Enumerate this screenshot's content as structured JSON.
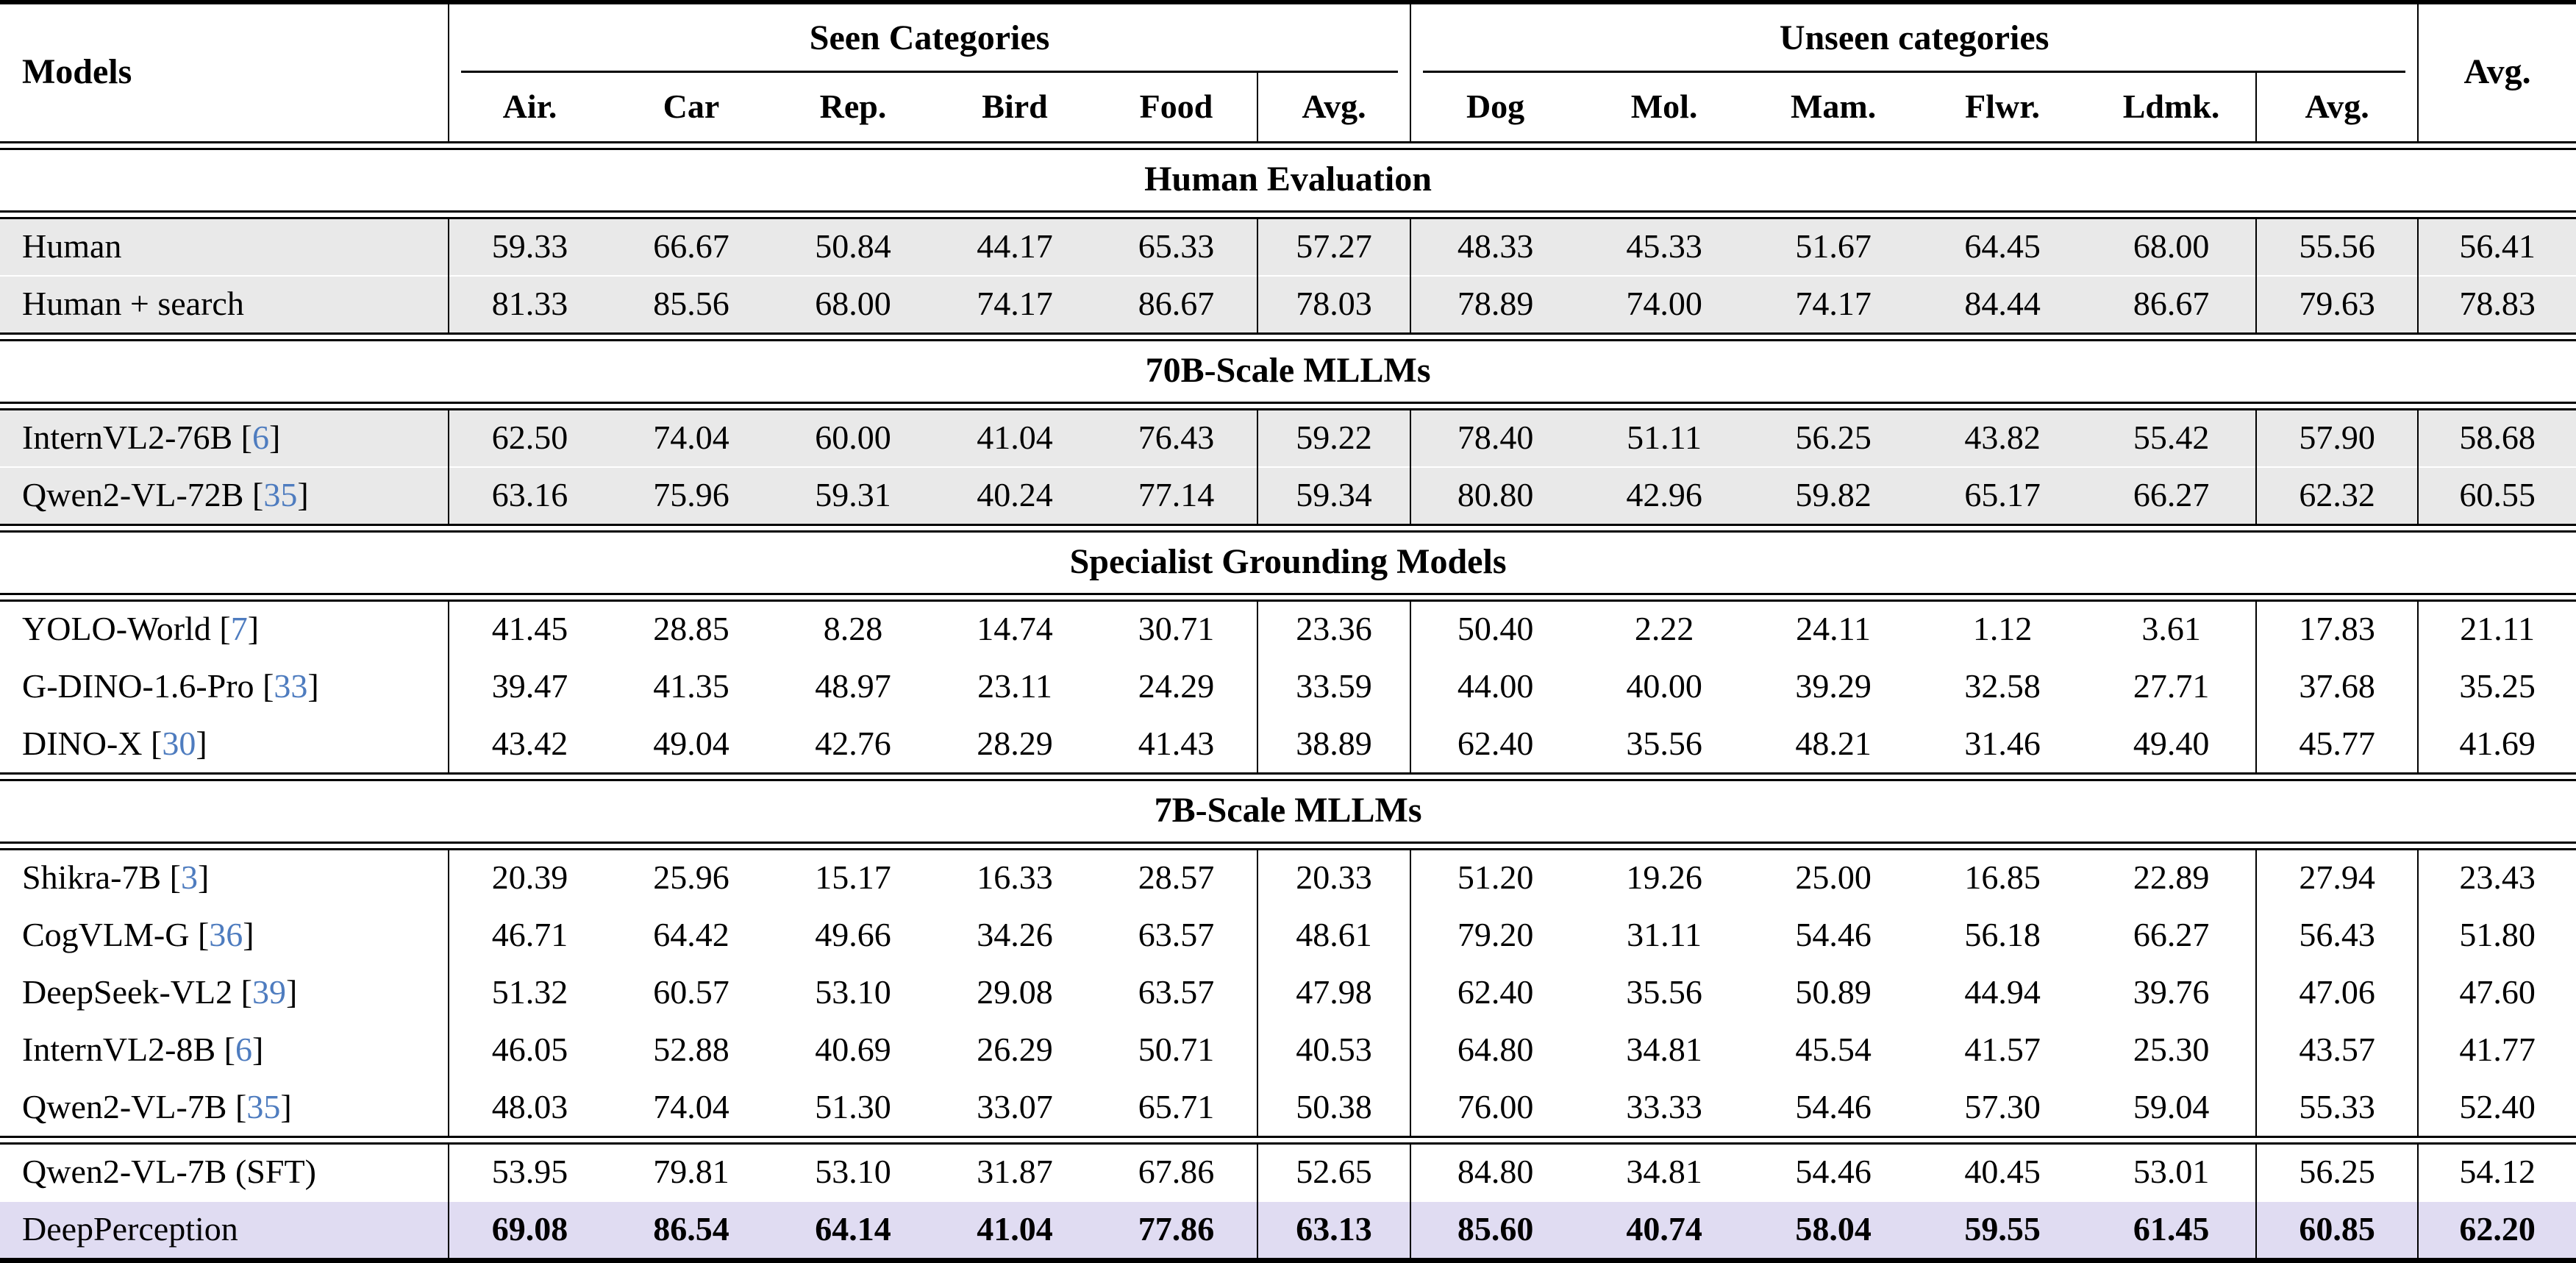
{
  "table": {
    "columns": {
      "models": "Models",
      "seen_group": "Seen Categories",
      "unseen_group": "Unseen categories",
      "avg": "Avg.",
      "seen": [
        "Air.",
        "Car",
        "Rep.",
        "Bird",
        "Food",
        "Avg."
      ],
      "unseen": [
        "Dog",
        "Mol.",
        "Mam.",
        "Flwr.",
        "Ldmk.",
        "Avg."
      ]
    },
    "colors": {
      "row_gray": "#e9e9e9",
      "row_highlight": "#e0dcf2",
      "citation_blue": "#4e7cbf"
    },
    "sections": [
      {
        "title": "Human Evaluation",
        "row_style": "gray",
        "rows": [
          {
            "model": "Human",
            "cite": null,
            "values": [
              "59.33",
              "66.67",
              "50.84",
              "44.17",
              "65.33",
              "57.27",
              "48.33",
              "45.33",
              "51.67",
              "64.45",
              "68.00",
              "55.56",
              "56.41"
            ]
          },
          {
            "model": "Human + search",
            "cite": null,
            "values": [
              "81.33",
              "85.56",
              "68.00",
              "74.17",
              "86.67",
              "78.03",
              "78.89",
              "74.00",
              "74.17",
              "84.44",
              "86.67",
              "79.63",
              "78.83"
            ]
          }
        ]
      },
      {
        "title": "70B-Scale MLLMs",
        "row_style": "gray",
        "rows": [
          {
            "model": "InternVL2-76B",
            "cite": "6",
            "values": [
              "62.50",
              "74.04",
              "60.00",
              "41.04",
              "76.43",
              "59.22",
              "78.40",
              "51.11",
              "56.25",
              "43.82",
              "55.42",
              "57.90",
              "58.68"
            ]
          },
          {
            "model": "Qwen2-VL-72B",
            "cite": "35",
            "values": [
              "63.16",
              "75.96",
              "59.31",
              "40.24",
              "77.14",
              "59.34",
              "80.80",
              "42.96",
              "59.82",
              "65.17",
              "66.27",
              "62.32",
              "60.55"
            ]
          }
        ]
      },
      {
        "title": "Specialist Grounding Models",
        "row_style": "white",
        "rows": [
          {
            "model": "YOLO-World",
            "cite": "7",
            "values": [
              "41.45",
              "28.85",
              "8.28",
              "14.74",
              "30.71",
              "23.36",
              "50.40",
              "2.22",
              "24.11",
              "1.12",
              "3.61",
              "17.83",
              "21.11"
            ]
          },
          {
            "model": "G-DINO-1.6-Pro",
            "cite": "33",
            "values": [
              "39.47",
              "41.35",
              "48.97",
              "23.11",
              "24.29",
              "33.59",
              "44.00",
              "40.00",
              "39.29",
              "32.58",
              "27.71",
              "37.68",
              "35.25"
            ]
          },
          {
            "model": "DINO-X",
            "cite": "30",
            "values": [
              "43.42",
              "49.04",
              "42.76",
              "28.29",
              "41.43",
              "38.89",
              "62.40",
              "35.56",
              "48.21",
              "31.46",
              "49.40",
              "45.77",
              "41.69"
            ]
          }
        ]
      },
      {
        "title": "7B-Scale MLLMs",
        "row_style": "white",
        "rows": [
          {
            "model": "Shikra-7B",
            "cite": "3",
            "values": [
              "20.39",
              "25.96",
              "15.17",
              "16.33",
              "28.57",
              "20.33",
              "51.20",
              "19.26",
              "25.00",
              "16.85",
              "22.89",
              "27.94",
              "23.43"
            ]
          },
          {
            "model": "CogVLM-G",
            "cite": "36",
            "values": [
              "46.71",
              "64.42",
              "49.66",
              "34.26",
              "63.57",
              "48.61",
              "79.20",
              "31.11",
              "54.46",
              "56.18",
              "66.27",
              "56.43",
              "51.80"
            ]
          },
          {
            "model": "DeepSeek-VL2",
            "cite": "39",
            "values": [
              "51.32",
              "60.57",
              "53.10",
              "29.08",
              "63.57",
              "47.98",
              "62.40",
              "35.56",
              "50.89",
              "44.94",
              "39.76",
              "47.06",
              "47.60"
            ]
          },
          {
            "model": "InternVL2-8B",
            "cite": "6",
            "values": [
              "46.05",
              "52.88",
              "40.69",
              "26.29",
              "50.71",
              "40.53",
              "64.80",
              "34.81",
              "45.54",
              "41.57",
              "25.30",
              "43.57",
              "41.77"
            ]
          },
          {
            "model": "Qwen2-VL-7B",
            "cite": "35",
            "values": [
              "48.03",
              "74.04",
              "51.30",
              "33.07",
              "65.71",
              "50.38",
              "76.00",
              "33.33",
              "54.46",
              "57.30",
              "59.04",
              "55.33",
              "52.40"
            ]
          }
        ]
      },
      {
        "title": null,
        "row_style": "white",
        "rows": [
          {
            "model": "Qwen2-VL-7B (SFT)",
            "cite": null,
            "values": [
              "53.95",
              "79.81",
              "53.10",
              "31.87",
              "67.86",
              "52.65",
              "84.80",
              "34.81",
              "54.46",
              "40.45",
              "53.01",
              "56.25",
              "54.12"
            ]
          },
          {
            "model": "DeepPerception",
            "cite": null,
            "style": "highlight",
            "bold_values": true,
            "values": [
              "69.08",
              "86.54",
              "64.14",
              "41.04",
              "77.86",
              "63.13",
              "85.60",
              "40.74",
              "58.04",
              "59.55",
              "61.45",
              "60.85",
              "62.20"
            ]
          }
        ]
      }
    ]
  }
}
